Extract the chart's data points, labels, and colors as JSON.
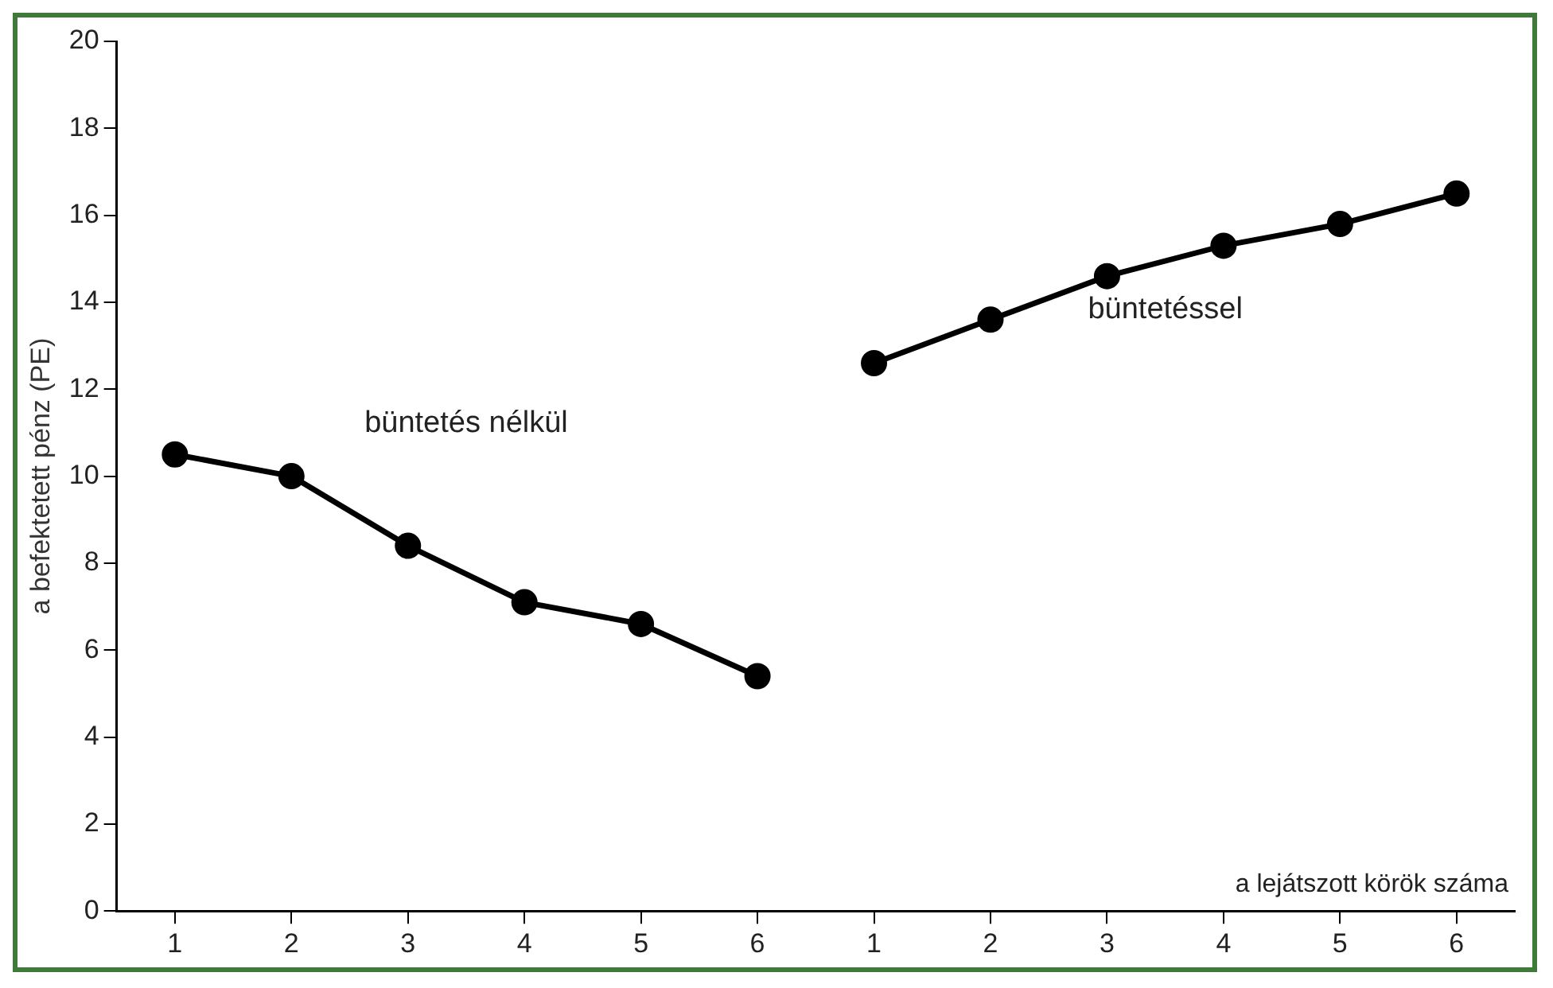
{
  "chart_data": {
    "type": "line",
    "xlabel": "a lejátszott körök száma",
    "ylabel": "a befektetett pénz (PE)",
    "categories": [
      "1",
      "2",
      "3",
      "4",
      "5",
      "6",
      "1",
      "2",
      "3",
      "4",
      "5",
      "6"
    ],
    "series": [
      {
        "name": "büntetés nélkül",
        "color": "#000000",
        "values": [
          10.5,
          10.0,
          8.4,
          7.1,
          6.6,
          5.4,
          null,
          null,
          null,
          null,
          null,
          null
        ]
      },
      {
        "name": "büntetéssel",
        "color": "#000000",
        "values": [
          null,
          null,
          null,
          null,
          null,
          null,
          12.6,
          13.6,
          14.6,
          15.3,
          15.8,
          16.5
        ]
      }
    ],
    "ylim": [
      0,
      20
    ],
    "yticks": [
      0,
      2,
      4,
      6,
      8,
      10,
      12,
      14,
      16,
      18,
      20
    ],
    "grid": false,
    "legend": false,
    "marker": "circle",
    "line_style": "solid"
  }
}
